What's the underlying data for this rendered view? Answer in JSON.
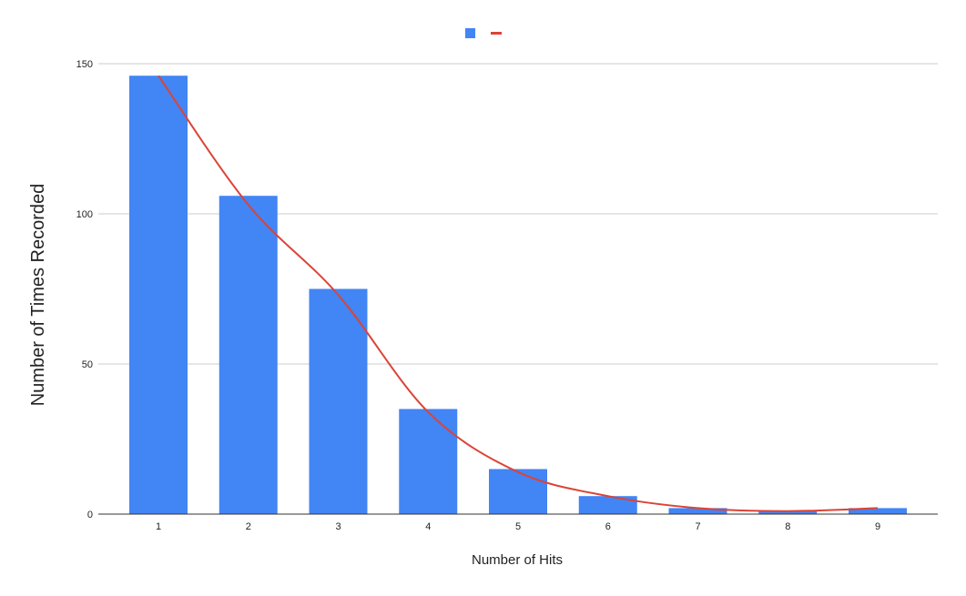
{
  "chart_data": {
    "type": "bar",
    "categories": [
      "1",
      "2",
      "3",
      "4",
      "5",
      "6",
      "7",
      "8",
      "9"
    ],
    "series": [
      {
        "values": [
          146,
          106,
          75,
          35,
          15,
          6,
          2,
          1,
          2
        ],
        "color": "#4285f4",
        "kind": "bar"
      },
      {
        "values": [
          146,
          103,
          73,
          34,
          14,
          6,
          2,
          1,
          2
        ],
        "color": "#db4437",
        "kind": "smooth-line"
      }
    ],
    "xlabel": "Number of Hits",
    "ylabel": "Number of Times Recorded",
    "ylim": [
      0,
      150
    ],
    "yticks": [
      0,
      50,
      100,
      150
    ],
    "grid": true,
    "legend": "top-center",
    "colors": {
      "bar": "#4285f4",
      "line": "#db4437",
      "grid": "#cccccc",
      "axis": "#333333"
    }
  }
}
